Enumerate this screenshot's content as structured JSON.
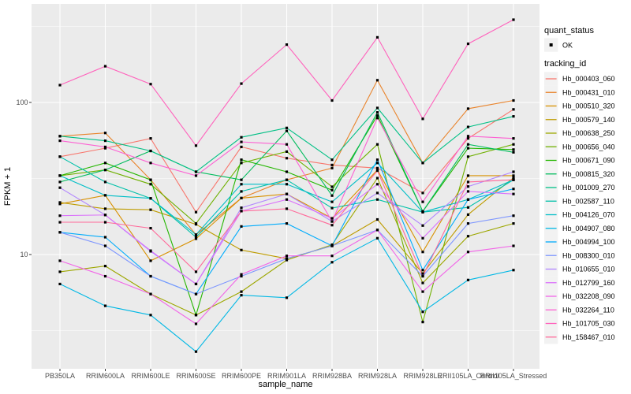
{
  "figure": {
    "bg": "#ffffff",
    "panel_bg": "#EBEBEB",
    "grid_color": "#FFFFFF",
    "tick_color": "#333333",
    "tick_label_color": "#4D4D4D",
    "title_color": "#000000",
    "point_color": "#000000",
    "key_bg": "#F2F2F2"
  },
  "legend": {
    "quant_status": {
      "title": "quant_status",
      "items": [
        {
          "label": "OK"
        }
      ]
    },
    "tracking_id": {
      "title": "tracking_id"
    }
  },
  "chart_data": {
    "type": "line",
    "xlabel": "sample_name",
    "ylabel": "FPKM + 1",
    "y_scale": "log10",
    "grid": true,
    "legend_position": "right",
    "y_major_ticks": [
      {
        "label": "100",
        "value": 100
      },
      {
        "label": "10",
        "value": 10
      }
    ],
    "y_minor_ticks": [
      316.23,
      31.62,
      3.162
    ],
    "x_categories": [
      "PB350LA",
      "RRIM600LA",
      "RRIM600LE",
      "RRIM600SE",
      "RRIM600PE",
      "RRIM901LA",
      "RRIM928BA",
      "RRIM928LA",
      "RRIM928LE",
      "RRII105LA_Control",
      "RRII105LA_Stressed"
    ],
    "series": [
      {
        "name": "Hb_000403_060",
        "color": "#F8766D",
        "quant_status": "OK",
        "values": [
          44,
          50,
          58,
          19,
          51,
          43,
          38.8,
          37,
          25.4,
          58,
          90
        ]
      },
      {
        "name": "Hb_000431_010",
        "color": "#E9842C",
        "quant_status": "OK",
        "values": [
          60,
          63,
          31,
          13.5,
          23.5,
          31,
          37,
          140,
          40,
          91,
          103
        ]
      },
      {
        "name": "Hb_000510_320",
        "color": "#D89000",
        "quant_status": "OK",
        "values": [
          21.5,
          24.5,
          9.1,
          12.7,
          23.5,
          25,
          17.3,
          36,
          10.4,
          33,
          33
        ]
      },
      {
        "name": "Hb_000579_140",
        "color": "#BE9C00",
        "quant_status": "OK",
        "values": [
          22,
          20,
          19.7,
          15.8,
          10.7,
          9.4,
          11.4,
          17,
          7.5,
          18.3,
          32
        ]
      },
      {
        "name": "Hb_000638_250",
        "color": "#9DA700",
        "quant_status": "OK",
        "values": [
          7.7,
          8.4,
          5.5,
          4.0,
          5.7,
          9.2,
          11.6,
          31.8,
          6.5,
          13.2,
          16
        ]
      },
      {
        "name": "Hb_000656_040",
        "color": "#6FB000",
        "quant_status": "OK",
        "values": [
          33,
          36,
          29,
          16,
          40,
          47.5,
          27.9,
          53,
          3.6,
          44,
          53
        ]
      },
      {
        "name": "Hb_000671_090",
        "color": "#24B700",
        "quant_status": "OK",
        "values": [
          33,
          40,
          31,
          4.0,
          42,
          35,
          26.5,
          82,
          19.2,
          50,
          49
        ]
      },
      {
        "name": "Hb_000815_320",
        "color": "#00BC5C",
        "quant_status": "OK",
        "values": [
          30,
          36,
          48,
          35,
          31,
          65,
          24.4,
          86,
          19.2,
          53,
          47
        ]
      },
      {
        "name": "Hb_001009_270",
        "color": "#00C085",
        "quant_status": "OK",
        "values": [
          60,
          56,
          48,
          35,
          59,
          68,
          42,
          92,
          40,
          69,
          81
        ]
      },
      {
        "name": "Hb_002587_110",
        "color": "#00C1A9",
        "quant_status": "OK",
        "values": [
          44,
          30,
          23.4,
          13,
          26,
          31,
          20.2,
          23,
          19,
          20.4,
          31
        ]
      },
      {
        "name": "Hb_004126_070",
        "color": "#00BEC7",
        "quant_status": "OK",
        "values": [
          33,
          24.5,
          23.4,
          13.5,
          29,
          29,
          22.2,
          40,
          19,
          23,
          31
        ]
      },
      {
        "name": "Hb_004907_080",
        "color": "#00B8E5",
        "quant_status": "OK",
        "values": [
          6.4,
          4.6,
          4.0,
          2.3,
          5.4,
          5.2,
          8.9,
          12.8,
          4.2,
          6.8,
          7.9
        ]
      },
      {
        "name": "Hb_004994_100",
        "color": "#00ACFC",
        "quant_status": "OK",
        "values": [
          14,
          13,
          7.2,
          5.5,
          15.3,
          16,
          11.4,
          42,
          7.9,
          23,
          27
        ]
      },
      {
        "name": "Hb_008300_010",
        "color": "#7E96FF",
        "quant_status": "OK",
        "values": [
          14,
          11.4,
          7.2,
          5.5,
          7.2,
          9.4,
          11.4,
          14.5,
          7.2,
          16,
          18
        ]
      },
      {
        "name": "Hb_010655_010",
        "color": "#B186FF",
        "quant_status": "OK",
        "values": [
          27.5,
          18.2,
          10.5,
          6.4,
          20.3,
          25,
          16.5,
          25.4,
          15.5,
          28,
          35
        ]
      },
      {
        "name": "Hb_012799_160",
        "color": "#DB72FB",
        "quant_status": "OK",
        "values": [
          18,
          18.2,
          10.6,
          6.4,
          19.3,
          23,
          17.3,
          29,
          12.8,
          26,
          25
        ]
      },
      {
        "name": "Hb_032208_090",
        "color": "#F265E8",
        "quant_status": "OK",
        "values": [
          9.1,
          7.2,
          5.5,
          3.5,
          7.4,
          9.8,
          9.8,
          14.5,
          5.7,
          10.4,
          11.4
        ]
      },
      {
        "name": "Hb_032264_110",
        "color": "#FD61D3",
        "quant_status": "OK",
        "values": [
          56,
          51,
          40,
          33,
          55,
          53,
          16.5,
          79,
          22.2,
          60,
          58
        ]
      },
      {
        "name": "Hb_101705_030",
        "color": "#FF62BC",
        "quant_status": "OK",
        "values": [
          130,
          173,
          132,
          52,
          133,
          240,
          103,
          268,
          78,
          243,
          350
        ]
      },
      {
        "name": "Hb_158467_010",
        "color": "#FF6A9A",
        "quant_status": "OK",
        "values": [
          16.3,
          16.3,
          14.9,
          7.7,
          19.3,
          20,
          15.6,
          35.6,
          7.2,
          30,
          31
        ]
      }
    ]
  }
}
